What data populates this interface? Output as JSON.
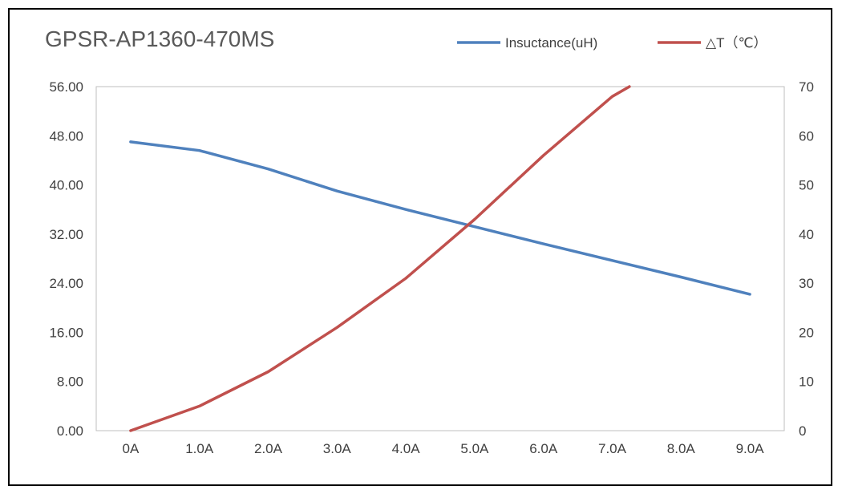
{
  "chart_data": {
    "type": "line",
    "title": "GPSR-AP1360-470MS",
    "categories": [
      "0A",
      "1.0A",
      "2.0A",
      "3.0A",
      "4.0A",
      "5.0A",
      "6.0A",
      "7.0A",
      "8.0A",
      "9.0A"
    ],
    "series": [
      {
        "name": "Insuctance(uH)",
        "axis": "left",
        "color": "#4f81bd",
        "values": [
          47.0,
          45.6,
          42.6,
          39.0,
          36.0,
          33.2,
          30.4,
          27.7,
          25.0,
          22.2
        ]
      },
      {
        "name": "△T（℃）",
        "axis": "right",
        "color": "#c0504d",
        "x": [
          0,
          1,
          2,
          3,
          4,
          5,
          6,
          7,
          7.25
        ],
        "values": [
          0,
          5,
          12,
          21,
          31,
          43,
          56,
          68,
          70
        ]
      }
    ],
    "y_left": {
      "ylim": [
        0,
        56
      ],
      "ticks": [
        "0.00",
        "8.00",
        "16.00",
        "24.00",
        "32.00",
        "40.00",
        "48.00",
        "56.00"
      ]
    },
    "y_right": {
      "ylim": [
        0,
        70
      ],
      "ticks": [
        "0",
        "10",
        "20",
        "30",
        "40",
        "50",
        "60",
        "70"
      ]
    },
    "legend": "top-right",
    "grid": false
  }
}
